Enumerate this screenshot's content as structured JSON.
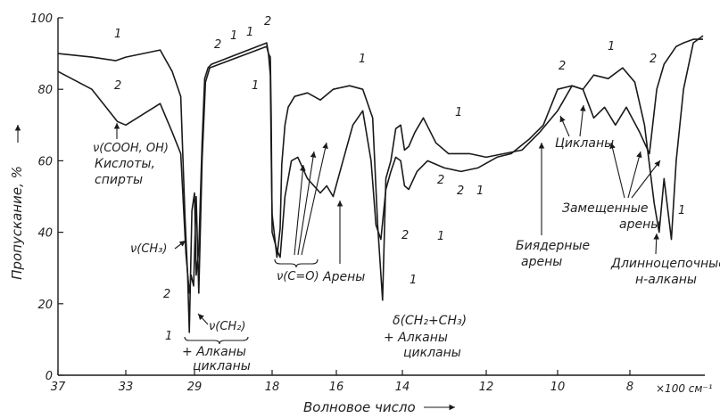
{
  "chart_data": {
    "type": "line",
    "xlabel": "Волновое число",
    "x_unit": "×100 см⁻¹",
    "ylabel": "Пропускание, %",
    "ylim": [
      0,
      100
    ],
    "y_ticks": [
      "0",
      "20",
      "40",
      "60",
      "80",
      "100"
    ],
    "x_ticks": [
      "37",
      "33",
      "29",
      "18",
      "16",
      "14",
      "12",
      "10",
      "8"
    ],
    "grid": false,
    "series": [
      {
        "name": "1",
        "x": [
          37,
          35,
          33.6,
          33,
          31,
          30.3,
          29.8,
          29.55,
          29.4,
          29.3,
          29.15,
          29.0,
          28.9,
          28.75,
          28.55,
          28.4,
          28.2,
          28.0,
          18.9,
          18.6,
          18.3,
          18.15,
          18.0,
          17.85,
          17.75,
          17.7,
          17.6,
          17.5,
          17.3,
          16.9,
          16.5,
          16.1,
          15.6,
          15.2,
          14.9,
          14.75,
          14.6,
          14.5,
          14.35,
          14.2,
          14.05,
          13.95,
          13.85,
          13.7,
          13.5,
          13.2,
          12.9,
          12.4,
          12.0,
          11.5,
          11.0,
          10.5,
          10.0,
          9.6,
          9.3,
          9.0,
          8.6,
          8.2,
          7.9,
          7.7,
          7.5,
          7.4,
          7.3,
          7.15,
          7.05,
          6.9,
          6.7,
          6.5
        ],
        "values": [
          90,
          89,
          88,
          89,
          91,
          85,
          78,
          44,
          28,
          12,
          46,
          51,
          28,
          35,
          65,
          83,
          86,
          87,
          93,
          90,
          84,
          62,
          45,
          33,
          41,
          59,
          70,
          75,
          78,
          79,
          77,
          80,
          81,
          80,
          72,
          42,
          21,
          55,
          60,
          69,
          70,
          63,
          64,
          68,
          72,
          65,
          62,
          62,
          61,
          62,
          63,
          68,
          74,
          81,
          80,
          84,
          83,
          86,
          82,
          70,
          48,
          40,
          55,
          38,
          60,
          80,
          93,
          95
        ]
      },
      {
        "name": "2",
        "x": [
          37,
          35,
          33.5,
          33,
          31,
          30.3,
          29.8,
          29.5,
          29.3,
          29.2,
          29.05,
          28.9,
          28.75,
          28.55,
          28.35,
          28.1,
          18.9,
          18.6,
          18.3,
          18.15,
          18.0,
          17.85,
          17.75,
          17.6,
          17.4,
          17.2,
          16.9,
          16.5,
          16.3,
          16.1,
          15.8,
          15.5,
          15.2,
          14.95,
          14.8,
          14.65,
          14.5,
          14.35,
          14.2,
          14.05,
          13.95,
          13.85,
          13.65,
          13.4,
          13.0,
          12.6,
          12.2,
          11.7,
          11.3,
          10.8,
          10.4,
          10.0,
          9.6,
          9.3,
          9.0,
          8.7,
          8.4,
          8.1,
          7.8,
          7.6,
          7.45,
          7.3,
          7.15,
          7.05,
          6.9,
          6.7,
          6.5
        ],
        "values": [
          85,
          80,
          71,
          70,
          76,
          68,
          62,
          34,
          23,
          28,
          25,
          50,
          23,
          60,
          82,
          86,
          92,
          90,
          89,
          72,
          40,
          35,
          33,
          50,
          60,
          61,
          55,
          51,
          53,
          50,
          60,
          70,
          74,
          60,
          42,
          38,
          52,
          57,
          61,
          60,
          53,
          52,
          57,
          60,
          58,
          57,
          58,
          61,
          62,
          66,
          70,
          80,
          81,
          80,
          72,
          75,
          70,
          75,
          68,
          62,
          80,
          87,
          90,
          92,
          93,
          94,
          94
        ]
      }
    ],
    "annotations": {
      "cooh": "ν(COOH, OH)",
      "kisloty": "Кислоты,",
      "spirty": "спирты",
      "ch3_stretch": "ν(CH₃)",
      "ch2_stretch": "ν(CH₂)",
      "alkany1": "+ Алканы",
      "cyclany1": "цикланы",
      "co": "ν(C=O)",
      "areny": "Арены",
      "delta": "δ(CH₂+CH₃)",
      "alkany2": "+ Алканы",
      "cyclany2": "цикланы",
      "biyadernye": "Биядерные",
      "areny2": "арены",
      "cyclany3": "Цикланы",
      "zameshchennye": "Замещенные",
      "areny3": "арены",
      "dlinno": "Длинноцепочные",
      "n_alkany": "н-алканы"
    }
  }
}
